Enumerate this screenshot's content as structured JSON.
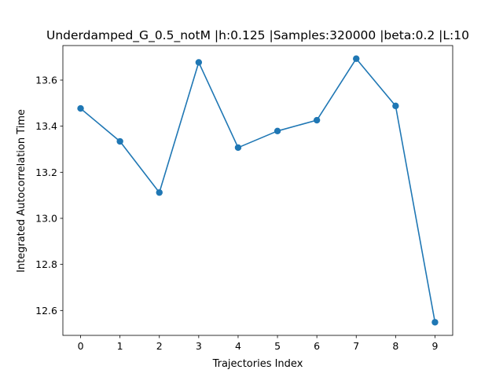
{
  "chart_data": {
    "type": "line",
    "title": "Underdamped_G_0.5_notM |h:0.125 |Samples:320000 |beta:0.2 |L:10",
    "xlabel": "Trajectories Index",
    "ylabel": "Integrated Autocorrelation Time",
    "x": [
      0,
      1,
      2,
      3,
      4,
      5,
      6,
      7,
      8,
      9
    ],
    "series": [
      {
        "values": [
          13.477,
          13.334,
          13.112,
          13.677,
          13.307,
          13.379,
          13.426,
          13.693,
          13.488,
          12.549
        ],
        "color": "#1f77b4",
        "marker": "circle"
      }
    ],
    "xlim": [
      -0.45,
      9.45
    ],
    "ylim": [
      12.492,
      13.75
    ],
    "xticks": [
      "0",
      "1",
      "2",
      "3",
      "4",
      "5",
      "6",
      "7",
      "8",
      "9"
    ],
    "yticks": [
      "12.6",
      "12.8",
      "13.0",
      "13.2",
      "13.4",
      "13.6"
    ],
    "grid": false,
    "legend": "none"
  }
}
